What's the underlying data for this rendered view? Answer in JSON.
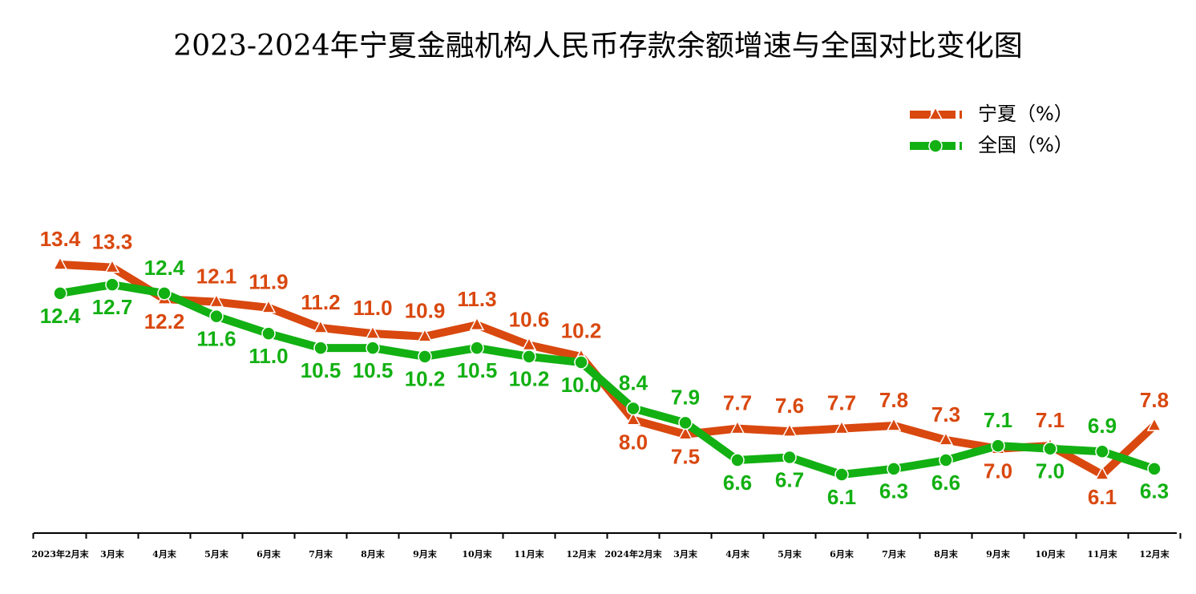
{
  "chart_data": {
    "type": "line",
    "title": "2023-2024年宁夏金融机构人民币存款余额增速与全国对比变化图",
    "categories": [
      "2023年2月末",
      "3月末",
      "4月末",
      "5月末",
      "6月末",
      "7月末",
      "8月末",
      "9月末",
      "10月末",
      "11月末",
      "12月末",
      "2024年2月末",
      "3月末",
      "4月末",
      "5月末",
      "6月末",
      "7月末",
      "8月末",
      "9月末",
      "10月末",
      "11月末",
      "12月末"
    ],
    "series": [
      {
        "name": "宁夏（%）",
        "color": "#d9480f",
        "marker": "triangle",
        "values": [
          13.4,
          13.3,
          12.2,
          12.1,
          11.9,
          11.2,
          11.0,
          10.9,
          11.3,
          10.6,
          10.2,
          8.0,
          7.5,
          7.7,
          7.6,
          7.7,
          7.8,
          7.3,
          7.0,
          7.1,
          6.1,
          7.8
        ],
        "value_labels": [
          "13.4",
          "13.3",
          "12.2",
          "12.1",
          "11.9",
          "11.2",
          "11.0",
          "10.9",
          "11.3",
          "10.6",
          "10.2",
          "8.0",
          "7.5",
          "7.7",
          "7.6",
          "7.7",
          "7.8",
          "7.3",
          "7.0",
          "7.1",
          "6.1",
          "7.8"
        ]
      },
      {
        "name": "全国（%）",
        "color": "#12b012",
        "marker": "circle",
        "values": [
          12.4,
          12.7,
          12.4,
          11.6,
          11.0,
          10.5,
          10.5,
          10.2,
          10.5,
          10.2,
          10.0,
          8.4,
          7.9,
          6.6,
          6.7,
          6.1,
          6.3,
          6.6,
          7.1,
          7.0,
          6.9,
          6.3
        ],
        "value_labels": [
          "12.4",
          "12.7",
          "12.4",
          "11.6",
          "11.0",
          "10.5",
          "10.5",
          "10.2",
          "10.5",
          "10.2",
          "10.0",
          "8.4",
          "7.9",
          "6.6",
          "6.7",
          "6.1",
          "6.3",
          "6.6",
          "7.1",
          "7.0",
          "6.9",
          "6.3"
        ]
      }
    ],
    "legend": "top-right"
  }
}
